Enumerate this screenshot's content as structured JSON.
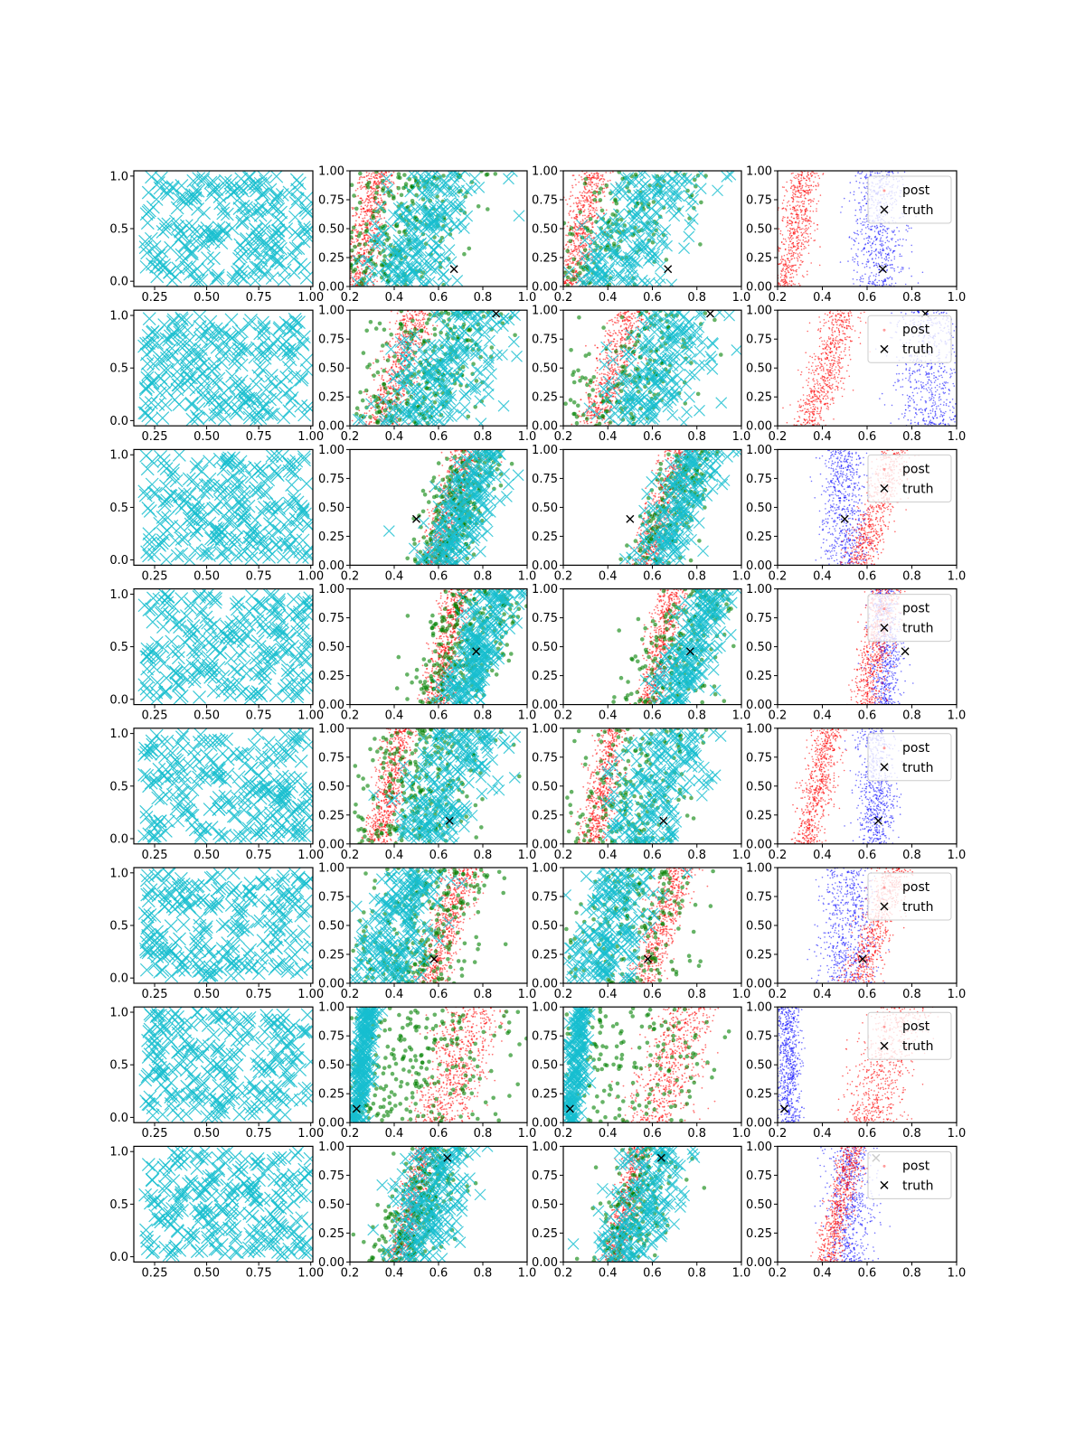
{
  "chart_data": {
    "type": "scatter",
    "layout": {
      "rows": 8,
      "cols": 4
    },
    "colors": {
      "cyan": "#17becf",
      "green": "#008000",
      "red": "#ff0000",
      "blue": "#0000ff",
      "black": "#000000"
    },
    "axes": {
      "col1": {
        "xlim": [
          0.15,
          1.01
        ],
        "ylim": [
          -0.05,
          1.05
        ],
        "xticks": [
          "0.25",
          "0.50",
          "0.75",
          "1.00"
        ],
        "yticks": [
          "0.0",
          "0.5",
          "1.0"
        ]
      },
      "col234": {
        "xlim": [
          0.2,
          1.0
        ],
        "ylim": [
          0.0,
          1.0
        ],
        "xticks": [
          "0.2",
          "0.4",
          "0.6",
          "0.8",
          "1.0"
        ],
        "yticks": [
          "0.00",
          "0.25",
          "0.50",
          "0.75",
          "1.00"
        ]
      }
    },
    "legend": {
      "placement": "top-right",
      "entries": [
        "post",
        "truth"
      ]
    },
    "truth": [
      {
        "row": 1,
        "x": 0.67,
        "y": 0.15
      },
      {
        "row": 2,
        "x": 0.86,
        "y": 0.97
      },
      {
        "row": 3,
        "x": 0.5,
        "y": 0.4
      },
      {
        "row": 4,
        "x": 0.77,
        "y": 0.46
      },
      {
        "row": 5,
        "x": 0.65,
        "y": 0.2
      },
      {
        "row": 6,
        "x": 0.58,
        "y": 0.21
      },
      {
        "row": 7,
        "x": 0.23,
        "y": 0.12
      },
      {
        "row": 8,
        "x": 0.64,
        "y": 0.9
      }
    ],
    "bands": [
      {
        "row": 1,
        "red": {
          "x0": 0.28,
          "slope": 0.11,
          "w": 0.08
        },
        "blue": {
          "x0": 0.65,
          "slope": 0.0,
          "w": 0.12
        },
        "cyan": {
          "x0": 0.54,
          "slope": 0.25,
          "w": 0.25
        }
      },
      {
        "row": 2,
        "red": {
          "x0": 0.42,
          "slope": 0.16,
          "w": 0.09
        },
        "blue": {
          "x0": 0.88,
          "slope": 0.0,
          "w": 0.16
        },
        "cyan": {
          "x0": 0.64,
          "slope": 0.25,
          "w": 0.28
        }
      },
      {
        "row": 3,
        "red": {
          "x0": 0.65,
          "slope": 0.16,
          "w": 0.08
        },
        "blue": {
          "x0": 0.5,
          "slope": 0.0,
          "w": 0.1
        },
        "cyan": {
          "x0": 0.72,
          "slope": 0.2,
          "w": 0.14
        }
      },
      {
        "row": 4,
        "red": {
          "x0": 0.64,
          "slope": 0.1,
          "w": 0.07
        },
        "blue": {
          "x0": 0.68,
          "slope": 0.0,
          "w": 0.07
        },
        "cyan": {
          "x0": 0.78,
          "slope": 0.2,
          "w": 0.12
        }
      },
      {
        "row": 5,
        "red": {
          "x0": 0.38,
          "slope": 0.1,
          "w": 0.07
        },
        "blue": {
          "x0": 0.64,
          "slope": 0.0,
          "w": 0.09
        },
        "cyan": {
          "x0": 0.62,
          "slope": 0.18,
          "w": 0.22
        }
      },
      {
        "row": 6,
        "red": {
          "x0": 0.64,
          "slope": 0.16,
          "w": 0.08
        },
        "blue": {
          "x0": 0.52,
          "slope": 0.0,
          "w": 0.13
        },
        "cyan": {
          "x0": 0.42,
          "slope": 0.15,
          "w": 0.18
        }
      },
      {
        "row": 7,
        "red": {
          "x0": 0.68,
          "slope": 0.16,
          "w": 0.14
        },
        "blue": {
          "x0": 0.25,
          "slope": 0.0,
          "w": 0.05
        },
        "cyan": {
          "x0": 0.26,
          "slope": 0.06,
          "w": 0.05
        }
      },
      {
        "row": 8,
        "red": {
          "x0": 0.48,
          "slope": 0.12,
          "w": 0.06
        },
        "blue": {
          "x0": 0.52,
          "slope": 0.0,
          "w": 0.11
        },
        "cyan": {
          "x0": 0.56,
          "slope": 0.18,
          "w": 0.18
        }
      }
    ]
  }
}
